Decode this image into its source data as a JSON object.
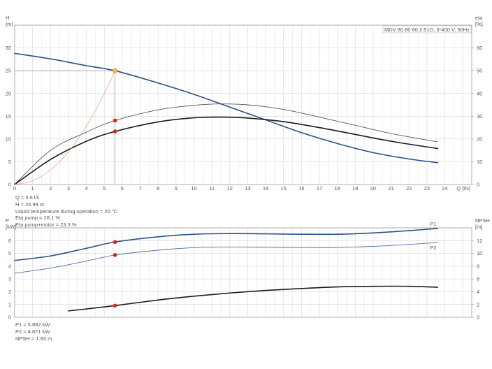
{
  "colors": {
    "blue": "#2b4f8a",
    "black": "#1a1a1a",
    "dark_gray": "#555555",
    "light_blue": "#4a6fa5",
    "salmon": "#f3a38f",
    "red": "#e01f1f",
    "yellow": "#f5b83a"
  },
  "chart_data": [
    {
      "type": "line",
      "title": "MDV 80 80 60.2.51D, 3*400 V, 50Hz",
      "ylabel_left": [
        "H",
        "[m]"
      ],
      "ylabel_right": [
        "eta",
        "[%]"
      ],
      "xlabel": "Q [l/s]",
      "xlim": [
        0,
        25.5
      ],
      "ylim_left": [
        0,
        35
      ],
      "ylim_right": [
        0,
        70
      ],
      "xticks": [
        0,
        1,
        2,
        3,
        4,
        5,
        6,
        7,
        8,
        9,
        10,
        11,
        12,
        13,
        14,
        15,
        16,
        17,
        18,
        19,
        20,
        21,
        22,
        23,
        24
      ],
      "yticks_left": [
        0,
        5,
        10,
        15,
        20,
        25,
        30
      ],
      "yticks_right": [
        0,
        10,
        20,
        30,
        40,
        50,
        60
      ],
      "grid": true,
      "series": [
        {
          "key": "head",
          "axis": "left",
          "color": "blue",
          "width": 1.6,
          "x": [
            0,
            2,
            4,
            5.6,
            8,
            10,
            12,
            14,
            16,
            18,
            20,
            22,
            23.6
          ],
          "y": [
            28.8,
            27.6,
            26.1,
            24.99,
            22.3,
            19.8,
            17.0,
            14.2,
            11.4,
            9.0,
            7.0,
            5.6,
            4.8
          ]
        },
        {
          "key": "eta-pump",
          "axis": "right",
          "color": "dark_gray",
          "width": 0.9,
          "x": [
            0,
            2,
            4,
            5.6,
            8,
            10,
            11.5,
            13,
            15,
            17,
            19,
            21,
            23.6
          ],
          "y": [
            0,
            15,
            23,
            28.1,
            32.8,
            34.8,
            35.4,
            35.0,
            33.0,
            29.6,
            26.0,
            22.4,
            18.7
          ]
        },
        {
          "key": "eta-pump-motor",
          "axis": "right",
          "color": "black",
          "width": 1.6,
          "x": [
            0,
            2,
            4,
            5.6,
            8,
            10,
            11.5,
            13,
            15,
            17,
            19,
            21,
            23.6
          ],
          "y": [
            0,
            11,
            19,
            23.3,
            27.5,
            29.3,
            29.6,
            29.2,
            27.6,
            25.0,
            22.0,
            19.0,
            15.8
          ]
        },
        {
          "key": "system-curve",
          "axis": "left",
          "color": "salmon",
          "width": 0.8,
          "x": [
            0,
            1,
            2,
            3,
            4,
            5,
            5.6
          ],
          "y": [
            0,
            0.8,
            3.2,
            7.2,
            12.8,
            19.9,
            24.99
          ]
        }
      ],
      "operating_point": {
        "q": 5.6,
        "h": 24.99
      },
      "markers": [
        {
          "x": 5.6,
          "y": 28.1,
          "axis": "right",
          "color": "red"
        },
        {
          "x": 5.6,
          "y": 23.3,
          "axis": "right",
          "color": "red"
        },
        {
          "x": 5.6,
          "y": 24.99,
          "axis": "left",
          "color": "yellow"
        }
      ]
    },
    {
      "type": "line",
      "ylabel_left": [
        "P",
        "[kW]"
      ],
      "ylabel_right": [
        "NPSH",
        "[m]"
      ],
      "xlim": [
        0,
        25.5
      ],
      "ylim_left": [
        0,
        7
      ],
      "ylim_right": [
        0,
        14
      ],
      "yticks_left": [
        0,
        1,
        2,
        3,
        4,
        5,
        6
      ],
      "yticks_right": [
        0,
        2,
        4,
        6,
        8,
        10,
        12
      ],
      "grid": true,
      "series": [
        {
          "key": "P1",
          "name": "P1",
          "axis": "left",
          "color": "blue",
          "width": 1.6,
          "x": [
            0,
            2,
            4,
            5.6,
            8,
            10,
            12,
            14,
            16,
            18,
            20,
            22,
            23.6
          ],
          "y": [
            4.45,
            4.8,
            5.4,
            5.892,
            6.3,
            6.5,
            6.55,
            6.53,
            6.5,
            6.5,
            6.6,
            6.78,
            6.95
          ]
        },
        {
          "key": "P2",
          "name": "P2",
          "axis": "left",
          "color": "light_blue",
          "width": 0.9,
          "x": [
            0,
            2,
            4,
            5.6,
            8,
            10,
            12,
            14,
            16,
            18,
            20,
            22,
            23.6
          ],
          "y": [
            3.45,
            3.85,
            4.4,
            4.871,
            5.25,
            5.45,
            5.5,
            5.48,
            5.46,
            5.46,
            5.55,
            5.7,
            5.85
          ]
        },
        {
          "key": "NPSH",
          "axis": "right",
          "color": "black",
          "width": 1.6,
          "x": [
            3,
            4,
            5.6,
            8,
            10,
            12,
            14,
            16,
            18,
            20,
            22,
            23.6
          ],
          "y": [
            1.0,
            1.3,
            1.83,
            2.7,
            3.3,
            3.8,
            4.2,
            4.5,
            4.75,
            4.85,
            4.85,
            4.7
          ]
        }
      ],
      "markers": [
        {
          "x": 5.6,
          "y": 5.892,
          "axis": "left",
          "color": "red"
        },
        {
          "x": 5.6,
          "y": 4.871,
          "axis": "left",
          "color": "red"
        },
        {
          "x": 5.6,
          "y": 1.83,
          "axis": "right",
          "color": "red"
        }
      ]
    }
  ],
  "info_top": [
    "Q = 5.6 l/s",
    "H = 24.99 m",
    "Liquid temperature during operation = 20 °C",
    "Eta pump = 28.1 %",
    "Eta pump+motor = 23.3 %"
  ],
  "info_bottom": [
    "P1 = 5.892 kW",
    "P2 = 4.871 kW",
    "NPSH = 1.83 m"
  ]
}
